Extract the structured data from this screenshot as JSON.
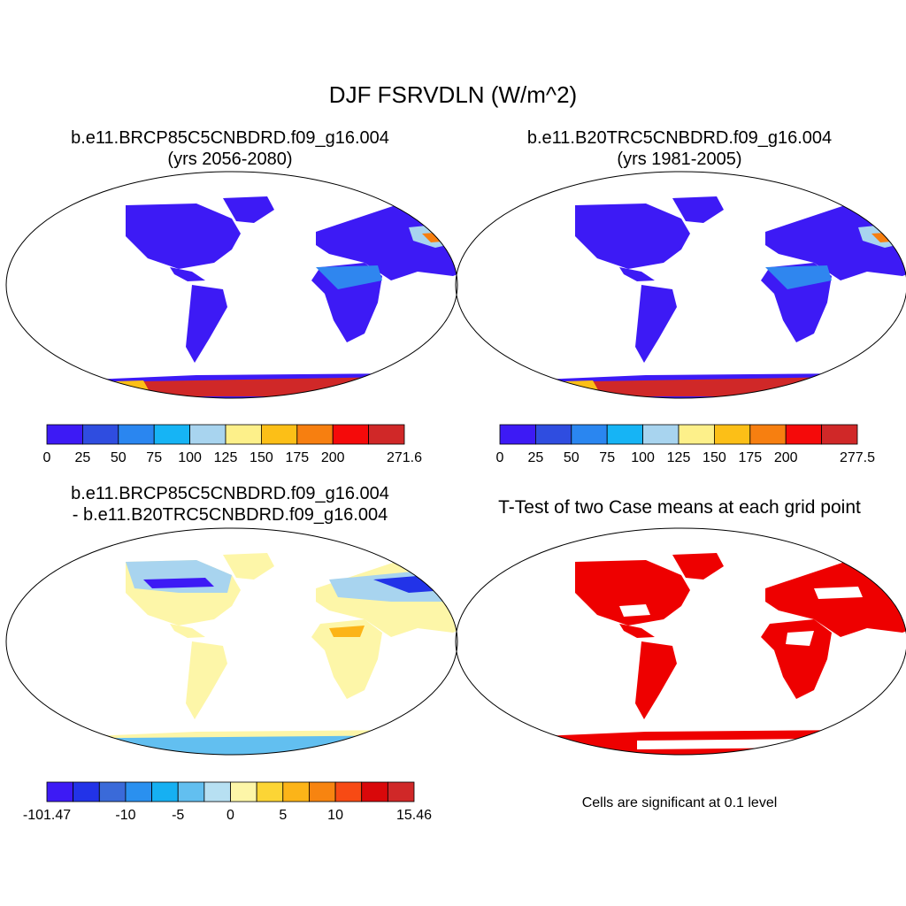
{
  "figure": {
    "title": "DJF FSRVDLN (W/m^2)",
    "note": "Cells are significant at 0.1 level"
  },
  "panels": [
    {
      "name": "case",
      "title_line1": "b.e11.BRCP85C5CNBDRD.f09_g16.004",
      "title_line2": "(yrs 2056-2080)",
      "colorbar": {
        "colors": [
          "#3d1af5",
          "#2f4de0",
          "#2a86f0",
          "#16b4f5",
          "#a8d4ef",
          "#fdf08a",
          "#fcbf17",
          "#f77f10",
          "#f50a0a",
          "#d02828"
        ],
        "labels": [
          "0",
          "25",
          "50",
          "75",
          "100",
          "125",
          "150",
          "175",
          "200",
          "271.6"
        ]
      }
    },
    {
      "name": "control",
      "title_line1": "b.e11.B20TRC5CNBDRD.f09_g16.004",
      "title_line2": "(yrs 1981-2005)",
      "colorbar": {
        "colors": [
          "#3d1af5",
          "#2f4de0",
          "#2a86f0",
          "#16b4f5",
          "#a8d4ef",
          "#fdf08a",
          "#fcbf17",
          "#f77f10",
          "#f50a0a",
          "#d02828"
        ],
        "labels": [
          "0",
          "25",
          "50",
          "75",
          "100",
          "125",
          "150",
          "175",
          "200",
          "277.5"
        ]
      }
    },
    {
      "name": "difference",
      "title_line1": "b.e11.BRCP85C5CNBDRD.f09_g16.004",
      "title_line2": "- b.e11.B20TRC5CNBDRD.f09_g16.004",
      "colorbar": {
        "colors": [
          "#3d1af5",
          "#2233e8",
          "#3a6ad9",
          "#2a90ef",
          "#16b0f2",
          "#62bff0",
          "#b7e0f2",
          "#fdf6a8",
          "#fcd535",
          "#fcb418",
          "#f78410",
          "#f74a14",
          "#d9080a",
          "#d02828"
        ],
        "labels": [
          "-101.47",
          "-10",
          "-5",
          "0",
          "5",
          "10",
          "15.46"
        ]
      }
    },
    {
      "name": "ttest",
      "title_line1": "T-Test of two Case means at each grid point",
      "title_line2": "",
      "significant_color": "#ee0000"
    }
  ]
}
